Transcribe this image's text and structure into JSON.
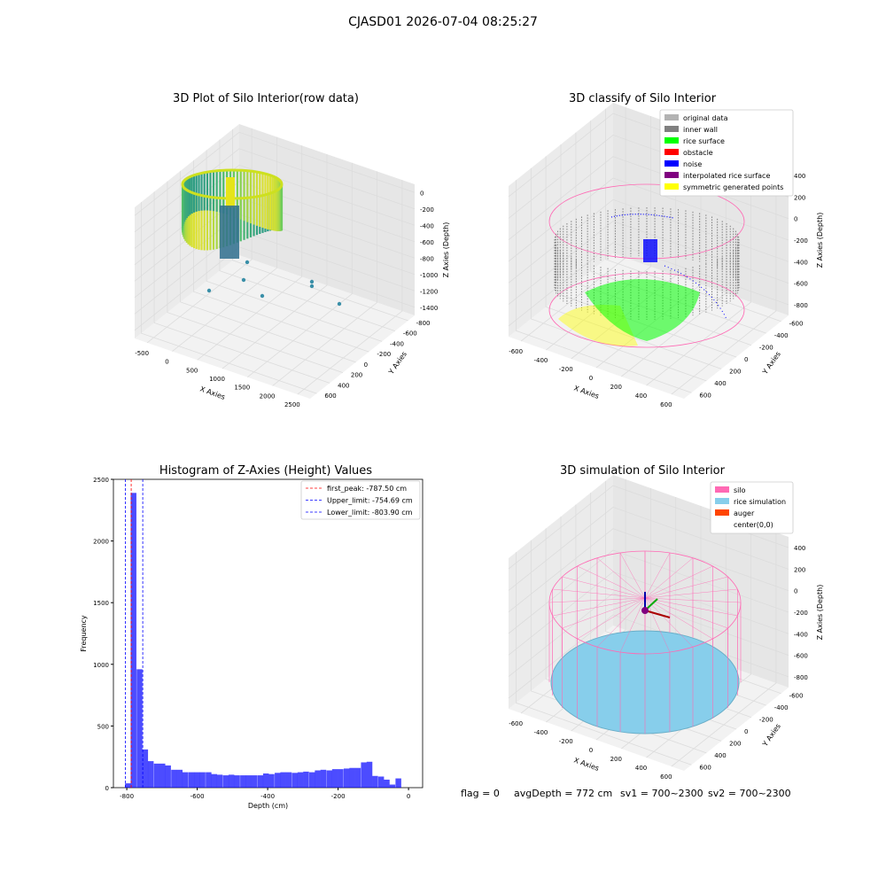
{
  "page_title": "CJASD01 2026-07-04 08:25:27",
  "footer": {
    "flag": "flag = 0",
    "avg": "avgDepth = 772 cm",
    "sv1": "sv1 = 700~2300",
    "sv2": "sv2 = 700~2300"
  },
  "colors": {
    "original": "#b3b3b3",
    "inner_wall": "#808080",
    "rice_surface": "#00ff00",
    "obstacle": "#ff0000",
    "noise": "#0000ff",
    "interpolated": "#800080",
    "symmetric": "#ffff00",
    "silo": "#ff69b4",
    "rice_sim": "#87ceeb",
    "auger": "#ff4500",
    "hist_bar": "#0000ff"
  },
  "chart_data": [
    {
      "type": "scatter3d",
      "title": "3D Plot of Silo Interior(row data)",
      "xlabel": "X Axies",
      "ylabel": "Y Axies",
      "zlabel": "Z Axies (Depth)",
      "x_ticks": [
        "-500",
        "0",
        "500",
        "1000",
        "1500",
        "2000",
        "2500"
      ],
      "y_ticks": [
        "600",
        "400",
        "200",
        "0",
        "-200",
        "-400",
        "-600",
        "-800"
      ],
      "z_ticks": [
        "0",
        "-200",
        "-400",
        "-600",
        "-800",
        "-1000",
        "-1200",
        "-1400"
      ],
      "colormap": "viridis"
    },
    {
      "type": "scatter3d",
      "title": "3D classify of Silo Interior",
      "xlabel": "X Axies",
      "ylabel": "Y Axies",
      "zlabel": "Z Axies (Depth)",
      "x_ticks": [
        "-600",
        "-400",
        "-200",
        "0",
        "200",
        "400",
        "600"
      ],
      "y_ticks": [
        "600",
        "400",
        "200",
        "0",
        "-200",
        "-400",
        "-600"
      ],
      "z_ticks": [
        "400",
        "200",
        "0",
        "-200",
        "-400",
        "-600",
        "-800"
      ],
      "legend": [
        "original data",
        "inner wall",
        "rice surface",
        "obstacle",
        "noise",
        "interpolated rice surface",
        "symmetric generated points"
      ]
    },
    {
      "type": "bar",
      "title": "Histogram of Z-Axies (Height) Values",
      "xlabel": "Depth (cm)",
      "ylabel": "Frequency",
      "xlim": [
        -838,
        40
      ],
      "ylim": [
        0,
        2500
      ],
      "x_ticks": [
        -800,
        -600,
        -400,
        -200,
        0
      ],
      "y_ticks": [
        0,
        500,
        1000,
        1500,
        2000,
        2500
      ],
      "bin_width": 16.3,
      "bins_start": [
        -805,
        -789,
        -772,
        -756,
        -740,
        -723,
        -707,
        -691,
        -674,
        -658,
        -642,
        -625,
        -609,
        -593,
        -576,
        -560,
        -544,
        -527,
        -511,
        -495,
        -478,
        -462,
        -446,
        -429,
        -413,
        -397,
        -380,
        -364,
        -348,
        -331,
        -315,
        -299,
        -282,
        -266,
        -250,
        -233,
        -217,
        -201,
        -184,
        -168,
        -152,
        -135,
        -119,
        -103,
        -86,
        -70,
        -54,
        -37,
        -21,
        -5
      ],
      "counts": [
        35,
        2390,
        960,
        310,
        215,
        195,
        195,
        180,
        145,
        145,
        125,
        125,
        125,
        125,
        125,
        110,
        105,
        100,
        105,
        100,
        100,
        100,
        100,
        100,
        115,
        110,
        120,
        125,
        125,
        120,
        125,
        130,
        125,
        140,
        145,
        140,
        150,
        150,
        155,
        160,
        160,
        205,
        210,
        95,
        90,
        65,
        25,
        75,
        0,
        0
      ],
      "lines": [
        {
          "label": "first_peak: -787.50 cm",
          "x": -787.5,
          "color": "#ff0000"
        },
        {
          "label": "Upper_limit: -754.69 cm",
          "x": -754.69,
          "color": "#0000ff"
        },
        {
          "label": "Lower_limit: -803.90 cm",
          "x": -803.9,
          "color": "#0000ff"
        }
      ]
    },
    {
      "type": "surface3d",
      "title": "3D simulation of Silo Interior",
      "xlabel": "X Axies",
      "ylabel": "Y Axies",
      "zlabel": "Z Axies (Depth)",
      "x_ticks": [
        "-600",
        "-400",
        "-200",
        "0",
        "200",
        "400",
        "600"
      ],
      "y_ticks": [
        "600",
        "400",
        "200",
        "0",
        "-200",
        "-400",
        "-600"
      ],
      "z_ticks": [
        "400",
        "200",
        "0",
        "-200",
        "-400",
        "-600",
        "-800"
      ],
      "legend": [
        "silo",
        "rice simulation",
        "auger",
        "center(0,0)"
      ]
    }
  ]
}
